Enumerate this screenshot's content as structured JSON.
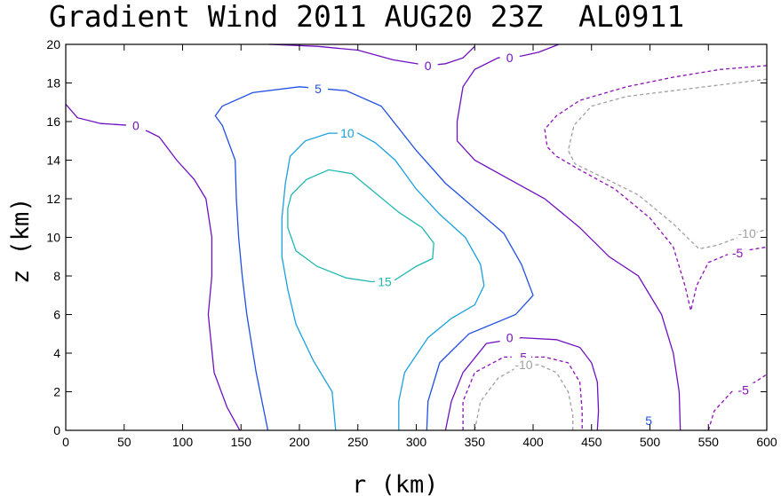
{
  "chart_data": {
    "type": "contour",
    "title": "Gradient Wind 2011 AUG20 23Z  AL0911",
    "xlabel": "r (km)",
    "ylabel": "z (km)",
    "xlim": [
      0,
      600
    ],
    "ylim": [
      0,
      20
    ],
    "x_ticks": [
      "0",
      "50",
      "100",
      "150",
      "200",
      "250",
      "300",
      "350",
      "400",
      "450",
      "500",
      "550",
      "600"
    ],
    "y_ticks": [
      "0",
      "2",
      "4",
      "6",
      "8",
      "10",
      "12",
      "14",
      "16",
      "18",
      "20"
    ],
    "grid": false,
    "legend": "none",
    "colors": {
      "l15": "#20b8b0",
      "l10": "#1aa0e0",
      "l5": "#2050e0",
      "l0": "#7010c0",
      "lneg5": "#8c10b8",
      "lneg10": "#a0a0a0",
      "axis": "#000000",
      "background": "#ffffff"
    },
    "contours": [
      {
        "level": 0,
        "label": "0",
        "color": "#7010c0",
        "dash": false,
        "points": [
          [
            0,
            16.9
          ],
          [
            10,
            16.2
          ],
          [
            30,
            15.9
          ],
          [
            55,
            15.8
          ],
          [
            70,
            15.5
          ],
          [
            80,
            15.2
          ],
          [
            95,
            14
          ],
          [
            110,
            13
          ],
          [
            120,
            12
          ],
          [
            125,
            10
          ],
          [
            125,
            8
          ],
          [
            122,
            6
          ],
          [
            127,
            3
          ],
          [
            138,
            1.2
          ],
          [
            149,
            0
          ]
        ],
        "label_at": [
          60,
          15.8
        ]
      },
      {
        "level": 0,
        "label": "0",
        "color": "#7010c0",
        "dash": false,
        "points": [
          [
            174,
            20
          ],
          [
            215,
            19.9
          ],
          [
            250,
            19.7
          ],
          [
            280,
            19.2
          ],
          [
            310,
            18.9
          ],
          [
            325,
            19
          ],
          [
            340,
            19.3
          ],
          [
            350,
            19.9
          ]
        ],
        "label_at": [
          310,
          18.9
        ]
      },
      {
        "level": 0,
        "label": "0",
        "color": "#7010c0",
        "dash": false,
        "points": [
          [
            422,
            20
          ],
          [
            405,
            19.6
          ],
          [
            390,
            19.4
          ],
          [
            370,
            19.3
          ],
          [
            350,
            18.7
          ],
          [
            340,
            17.8
          ],
          [
            335,
            16
          ],
          [
            335,
            15
          ],
          [
            350,
            14
          ],
          [
            380,
            13
          ],
          [
            410,
            12
          ],
          [
            440,
            10.5
          ],
          [
            465,
            9
          ],
          [
            490,
            8
          ],
          [
            510,
            6
          ],
          [
            520,
            4
          ],
          [
            525,
            2
          ],
          [
            526,
            0
          ]
        ],
        "label_at": [
          380,
          19.3
        ]
      },
      {
        "level": 0,
        "label": "0",
        "color": "#7010c0",
        "dash": false,
        "points": [
          [
            325,
            0
          ],
          [
            330,
            1.5
          ],
          [
            340,
            3
          ],
          [
            360,
            4.5
          ],
          [
            390,
            4.8
          ],
          [
            420,
            4.7
          ],
          [
            440,
            4.3
          ],
          [
            450,
            3.5
          ],
          [
            455,
            2.5
          ],
          [
            456,
            1
          ],
          [
            455,
            0
          ]
        ],
        "label_at": [
          380,
          4.8
        ]
      },
      {
        "level": 5,
        "label": "5",
        "color": "#2050e0",
        "dash": false,
        "points": [
          [
            173,
            0
          ],
          [
            163,
            3
          ],
          [
            155,
            6
          ],
          [
            151,
            8
          ],
          [
            148,
            10
          ],
          [
            146,
            12
          ],
          [
            145,
            14
          ],
          [
            134,
            15.8
          ],
          [
            128,
            16.3
          ],
          [
            134,
            16.8
          ],
          [
            160,
            17.5
          ],
          [
            200,
            17.8
          ],
          [
            240,
            17.6
          ],
          [
            270,
            16.8
          ],
          [
            300,
            14.5
          ],
          [
            325,
            12.8
          ],
          [
            350,
            11.5
          ],
          [
            375,
            10.2
          ],
          [
            390,
            8.6
          ],
          [
            400,
            7
          ],
          [
            385,
            6
          ],
          [
            345,
            5
          ],
          [
            320,
            3.5
          ],
          [
            310,
            1.5
          ],
          [
            309,
            0
          ]
        ],
        "label_at": [
          216,
          17.7
        ]
      },
      {
        "level": 10,
        "label": "10",
        "color": "#1aa0e0",
        "dash": false,
        "points": [
          [
            231,
            0
          ],
          [
            228,
            2
          ],
          [
            212,
            3.6
          ],
          [
            197,
            5.5
          ],
          [
            190,
            7.3
          ],
          [
            185,
            9
          ],
          [
            185,
            11
          ],
          [
            188,
            12.8
          ],
          [
            192,
            14.2
          ],
          [
            205,
            15
          ],
          [
            225,
            15.4
          ],
          [
            250,
            15.4
          ],
          [
            265,
            14.9
          ],
          [
            282,
            14
          ],
          [
            300,
            12.5
          ],
          [
            320,
            11.2
          ],
          [
            342,
            10
          ],
          [
            355,
            8.6
          ],
          [
            358,
            7.5
          ],
          [
            350,
            6.5
          ],
          [
            330,
            5.8
          ],
          [
            310,
            4.8
          ],
          [
            290,
            3
          ],
          [
            285,
            1.5
          ],
          [
            285,
            0
          ]
        ],
        "label_at": [
          241,
          15.4
        ]
      },
      {
        "level": 15,
        "label": "15",
        "color": "#20b8b0",
        "dash": false,
        "points": [
          [
            262,
            7.7
          ],
          [
            240,
            7.9
          ],
          [
            215,
            8.5
          ],
          [
            197,
            9.3
          ],
          [
            190,
            10.5
          ],
          [
            190,
            11.5
          ],
          [
            193,
            12.2
          ],
          [
            206,
            13
          ],
          [
            225,
            13.5
          ],
          [
            245,
            13.3
          ],
          [
            265,
            12.3
          ],
          [
            285,
            11.3
          ],
          [
            305,
            10.5
          ],
          [
            315,
            9.7
          ],
          [
            314,
            8.9
          ],
          [
            300,
            8.5
          ],
          [
            282,
            7.8
          ],
          [
            262,
            7.7
          ]
        ],
        "label_at": [
          273,
          7.7
        ]
      },
      {
        "level": -5,
        "label": "-5",
        "color": "#8c10b8",
        "dash": true,
        "points": [
          [
            340,
            0
          ],
          [
            340,
            1.5
          ],
          [
            350,
            3
          ],
          [
            375,
            3.8
          ],
          [
            410,
            3.8
          ],
          [
            430,
            3.5
          ],
          [
            440,
            2.5
          ],
          [
            442,
            1
          ],
          [
            442,
            0
          ]
        ],
        "label_at": [
          390,
          3.8
        ]
      },
      {
        "level": -5,
        "label": "-5",
        "color": "#8c10b8",
        "dash": true,
        "points": [
          [
            600,
            18.9
          ],
          [
            560,
            18.7
          ],
          [
            520,
            18.3
          ],
          [
            480,
            17.8
          ],
          [
            440,
            17.1
          ],
          [
            420,
            16.3
          ],
          [
            410,
            15.6
          ],
          [
            412,
            14.7
          ],
          [
            420,
            14.2
          ],
          [
            440,
            13.5
          ],
          [
            470,
            12.5
          ],
          [
            500,
            11
          ],
          [
            520,
            9.5
          ],
          [
            530,
            7.5
          ],
          [
            535,
            6.2
          ],
          [
            540,
            7.5
          ],
          [
            550,
            8.7
          ],
          [
            570,
            9.2
          ],
          [
            600,
            9.5
          ]
        ],
        "label_at": [
          575,
          9.2
        ]
      },
      {
        "level": -5,
        "label": "-5",
        "color": "#8c10b8",
        "dash": true,
        "points": [
          [
            550,
            0
          ],
          [
            555,
            1
          ],
          [
            570,
            2
          ],
          [
            590,
            2.5
          ],
          [
            600,
            2.9
          ]
        ],
        "label_at": [
          580,
          2.1
        ]
      },
      {
        "level": -10,
        "label": "-10",
        "color": "#a0a0a0",
        "dash": true,
        "points": [
          [
            600,
            18.2
          ],
          [
            560,
            17.9
          ],
          [
            520,
            17.6
          ],
          [
            480,
            17.3
          ],
          [
            450,
            16.8
          ],
          [
            435,
            15.8
          ],
          [
            430,
            14.5
          ],
          [
            436,
            13.8
          ],
          [
            460,
            13.1
          ],
          [
            490,
            12.2
          ],
          [
            520,
            10.7
          ],
          [
            542,
            9.4
          ],
          [
            558,
            9.6
          ],
          [
            580,
            10.1
          ],
          [
            600,
            10.4
          ]
        ],
        "label_at": [
          583,
          10.2
        ]
      },
      {
        "level": -10,
        "label": "-10",
        "color": "#a0a0a0",
        "dash": true,
        "points": [
          [
            350,
            0
          ],
          [
            355,
            1.5
          ],
          [
            370,
            2.7
          ],
          [
            390,
            3.4
          ],
          [
            405,
            3.4
          ],
          [
            420,
            3
          ],
          [
            430,
            2
          ],
          [
            434,
            0.8
          ],
          [
            434,
            0
          ]
        ],
        "label_at": [
          392,
          3.4
        ]
      }
    ],
    "extra_labels": [
      {
        "label": "5",
        "color": "#2050e0",
        "at": [
          499,
          0.5
        ]
      }
    ]
  }
}
